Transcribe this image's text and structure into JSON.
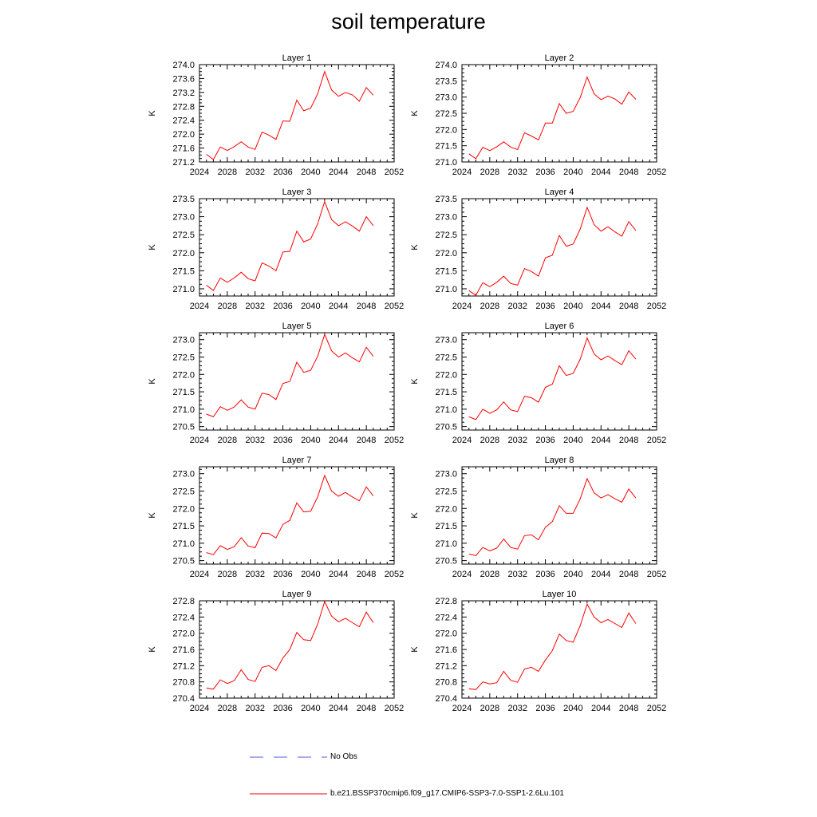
{
  "title": "soil temperature",
  "legend": {
    "entries": [
      {
        "label": "No Obs",
        "color": "#4a5bd6",
        "style": "dashed"
      },
      {
        "label": "b.e21.BSSP370cmip6.f09_g17.CMIP6-SSP3-7.0-SSP1-2.6Lu.101",
        "color": "#ff0000",
        "style": "solid"
      }
    ]
  },
  "chart_data": [
    {
      "type": "line",
      "title": "Layer 1",
      "ylabel": "K",
      "xlim": [
        2024,
        2052
      ],
      "ylim": [
        271.2,
        274.0
      ],
      "xticks": [
        "2024",
        "2028",
        "2032",
        "2036",
        "2040",
        "2044",
        "2048",
        "2052"
      ],
      "yticks": [
        "271.2",
        "271.6",
        "272.0",
        "272.4",
        "272.8",
        "273.2",
        "273.6",
        "274.0"
      ],
      "series": [
        {
          "color": "#ff0000",
          "x": [
            2025,
            2026,
            2027,
            2028,
            2029,
            2030,
            2031,
            2032,
            2033,
            2034,
            2035,
            2036,
            2037,
            2038,
            2039,
            2040,
            2041,
            2042,
            2043,
            2044,
            2045,
            2046,
            2047,
            2048,
            2049
          ],
          "values": [
            271.42,
            271.27,
            271.63,
            271.53,
            271.64,
            271.78,
            271.63,
            271.56,
            272.06,
            271.97,
            271.85,
            272.38,
            272.37,
            272.98,
            272.67,
            272.75,
            273.16,
            273.8,
            273.27,
            273.09,
            273.2,
            273.13,
            272.95,
            273.34,
            273.12
          ]
        }
      ]
    },
    {
      "type": "line",
      "title": "Layer 2",
      "ylabel": "K",
      "xlim": [
        2024,
        2052
      ],
      "ylim": [
        271.0,
        274.0
      ],
      "xticks": [
        "2024",
        "2028",
        "2032",
        "2036",
        "2040",
        "2044",
        "2048",
        "2052"
      ],
      "yticks": [
        "271.0",
        "271.5",
        "272.0",
        "272.5",
        "273.0",
        "273.5",
        "274.0"
      ],
      "series": [
        {
          "color": "#ff0000",
          "x": [
            2025,
            2026,
            2027,
            2028,
            2029,
            2030,
            2031,
            2032,
            2033,
            2034,
            2035,
            2036,
            2037,
            2038,
            2039,
            2040,
            2041,
            2042,
            2043,
            2044,
            2045,
            2046,
            2047,
            2048,
            2049
          ],
          "values": [
            271.25,
            271.1,
            271.45,
            271.35,
            271.47,
            271.62,
            271.46,
            271.38,
            271.9,
            271.8,
            271.68,
            272.2,
            272.2,
            272.8,
            272.5,
            272.56,
            272.98,
            273.62,
            273.1,
            272.92,
            273.03,
            272.94,
            272.78,
            273.16,
            272.93
          ]
        }
      ]
    },
    {
      "type": "line",
      "title": "Layer 3",
      "ylabel": "K",
      "xlim": [
        2024,
        2052
      ],
      "ylim": [
        270.8,
        273.5
      ],
      "xticks": [
        "2024",
        "2028",
        "2032",
        "2036",
        "2040",
        "2044",
        "2048",
        "2052"
      ],
      "yticks": [
        "271.0",
        "271.5",
        "272.0",
        "272.5",
        "273.0",
        "273.5"
      ],
      "series": [
        {
          "color": "#ff0000",
          "x": [
            2025,
            2026,
            2027,
            2028,
            2029,
            2030,
            2031,
            2032,
            2033,
            2034,
            2035,
            2036,
            2037,
            2038,
            2039,
            2040,
            2041,
            2042,
            2043,
            2044,
            2045,
            2046,
            2047,
            2048,
            2049
          ],
          "values": [
            271.1,
            270.95,
            271.3,
            271.18,
            271.3,
            271.46,
            271.28,
            271.22,
            271.72,
            271.63,
            271.5,
            272.02,
            272.04,
            272.6,
            272.3,
            272.38,
            272.8,
            273.42,
            272.92,
            272.75,
            272.86,
            272.74,
            272.6,
            273.0,
            272.75
          ]
        }
      ]
    },
    {
      "type": "line",
      "title": "Layer 4",
      "ylabel": "K",
      "xlim": [
        2024,
        2052
      ],
      "ylim": [
        270.8,
        273.5
      ],
      "xticks": [
        "2024",
        "2028",
        "2032",
        "2036",
        "2040",
        "2044",
        "2048",
        "2052"
      ],
      "yticks": [
        "271.0",
        "271.5",
        "272.0",
        "272.5",
        "273.0",
        "273.5"
      ],
      "series": [
        {
          "color": "#ff0000",
          "x": [
            2025,
            2026,
            2027,
            2028,
            2029,
            2030,
            2031,
            2032,
            2033,
            2034,
            2035,
            2036,
            2037,
            2038,
            2039,
            2040,
            2041,
            2042,
            2043,
            2044,
            2045,
            2046,
            2047,
            2048,
            2049
          ],
          "values": [
            270.95,
            270.82,
            271.17,
            271.06,
            271.18,
            271.35,
            271.15,
            271.1,
            271.56,
            271.48,
            271.35,
            271.86,
            271.93,
            272.48,
            272.18,
            272.24,
            272.65,
            273.26,
            272.78,
            272.6,
            272.72,
            272.58,
            272.46,
            272.86,
            272.62
          ]
        }
      ]
    },
    {
      "type": "line",
      "title": "Layer 5",
      "ylabel": "K",
      "xlim": [
        2024,
        2052
      ],
      "ylim": [
        270.4,
        273.2
      ],
      "xticks": [
        "2024",
        "2028",
        "2032",
        "2036",
        "2040",
        "2044",
        "2048",
        "2052"
      ],
      "yticks": [
        "270.5",
        "271.0",
        "271.5",
        "272.0",
        "272.5",
        "273.0"
      ],
      "series": [
        {
          "color": "#ff0000",
          "x": [
            2025,
            2026,
            2027,
            2028,
            2029,
            2030,
            2031,
            2032,
            2033,
            2034,
            2035,
            2036,
            2037,
            2038,
            2039,
            2040,
            2041,
            2042,
            2043,
            2044,
            2045,
            2046,
            2047,
            2048,
            2049
          ],
          "values": [
            270.86,
            270.78,
            271.07,
            270.97,
            271.06,
            271.27,
            271.06,
            271.0,
            271.46,
            271.42,
            271.28,
            271.74,
            271.8,
            272.35,
            272.06,
            272.12,
            272.52,
            273.15,
            272.68,
            272.5,
            272.62,
            272.48,
            272.36,
            272.78,
            272.52
          ]
        }
      ]
    },
    {
      "type": "line",
      "title": "Layer 6",
      "ylabel": "K",
      "xlim": [
        2024,
        2052
      ],
      "ylim": [
        270.4,
        273.2
      ],
      "xticks": [
        "2024",
        "2028",
        "2032",
        "2036",
        "2040",
        "2044",
        "2048",
        "2052"
      ],
      "yticks": [
        "270.5",
        "271.0",
        "271.5",
        "272.0",
        "272.5",
        "273.0"
      ],
      "series": [
        {
          "color": "#ff0000",
          "x": [
            2025,
            2026,
            2027,
            2028,
            2029,
            2030,
            2031,
            2032,
            2033,
            2034,
            2035,
            2036,
            2037,
            2038,
            2039,
            2040,
            2041,
            2042,
            2043,
            2044,
            2045,
            2046,
            2047,
            2048,
            2049
          ],
          "values": [
            270.78,
            270.7,
            271.0,
            270.88,
            270.98,
            271.21,
            270.98,
            270.93,
            271.37,
            271.33,
            271.2,
            271.63,
            271.72,
            272.25,
            271.97,
            272.03,
            272.43,
            273.05,
            272.59,
            272.42,
            272.53,
            272.4,
            272.28,
            272.68,
            272.44
          ]
        }
      ]
    },
    {
      "type": "line",
      "title": "Layer 7",
      "ylabel": "K",
      "xlim": [
        2024,
        2052
      ],
      "ylim": [
        270.4,
        273.2
      ],
      "xticks": [
        "2024",
        "2028",
        "2032",
        "2036",
        "2040",
        "2044",
        "2048",
        "2052"
      ],
      "yticks": [
        "270.5",
        "271.0",
        "271.5",
        "272.0",
        "272.5",
        "273.0"
      ],
      "series": [
        {
          "color": "#ff0000",
          "x": [
            2025,
            2026,
            2027,
            2028,
            2029,
            2030,
            2031,
            2032,
            2033,
            2034,
            2035,
            2036,
            2037,
            2038,
            2039,
            2040,
            2041,
            2042,
            2043,
            2044,
            2045,
            2046,
            2047,
            2048,
            2049
          ],
          "values": [
            270.73,
            270.67,
            270.93,
            270.82,
            270.9,
            271.16,
            270.92,
            270.87,
            271.29,
            271.28,
            271.15,
            271.54,
            271.66,
            272.16,
            271.9,
            271.92,
            272.33,
            272.95,
            272.5,
            272.35,
            272.46,
            272.33,
            272.22,
            272.62,
            272.36
          ]
        }
      ]
    },
    {
      "type": "line",
      "title": "Layer 8",
      "ylabel": "K",
      "xlim": [
        2024,
        2052
      ],
      "ylim": [
        270.4,
        273.2
      ],
      "xticks": [
        "2024",
        "2028",
        "2032",
        "2036",
        "2040",
        "2044",
        "2048",
        "2052"
      ],
      "yticks": [
        "270.5",
        "271.0",
        "271.5",
        "272.0",
        "272.5",
        "273.0"
      ],
      "series": [
        {
          "color": "#ff0000",
          "x": [
            2025,
            2026,
            2027,
            2028,
            2029,
            2030,
            2031,
            2032,
            2033,
            2034,
            2035,
            2036,
            2037,
            2038,
            2039,
            2040,
            2041,
            2042,
            2043,
            2044,
            2045,
            2046,
            2047,
            2048,
            2049
          ],
          "values": [
            270.69,
            270.64,
            270.88,
            270.78,
            270.86,
            271.12,
            270.88,
            270.83,
            271.22,
            271.24,
            271.1,
            271.46,
            271.62,
            272.08,
            271.86,
            271.86,
            272.27,
            272.86,
            272.45,
            272.3,
            272.4,
            272.28,
            272.18,
            272.56,
            272.3
          ]
        }
      ]
    },
    {
      "type": "line",
      "title": "Layer 9",
      "ylabel": "K",
      "xlim": [
        2024,
        2052
      ],
      "ylim": [
        270.4,
        272.8
      ],
      "xticks": [
        "2024",
        "2028",
        "2032",
        "2036",
        "2040",
        "2044",
        "2048",
        "2052"
      ],
      "yticks": [
        "270.4",
        "270.8",
        "271.2",
        "271.6",
        "272.0",
        "272.4",
        "272.8"
      ],
      "series": [
        {
          "color": "#ff0000",
          "x": [
            2025,
            2026,
            2027,
            2028,
            2029,
            2030,
            2031,
            2032,
            2033,
            2034,
            2035,
            2036,
            2037,
            2038,
            2039,
            2040,
            2041,
            2042,
            2043,
            2044,
            2045,
            2046,
            2047,
            2048,
            2049
          ],
          "values": [
            270.65,
            270.62,
            270.85,
            270.76,
            270.83,
            271.1,
            270.86,
            270.81,
            271.16,
            271.2,
            271.08,
            271.39,
            271.6,
            272.02,
            271.84,
            271.82,
            272.22,
            272.78,
            272.42,
            272.28,
            272.37,
            272.26,
            272.16,
            272.52,
            272.26
          ]
        }
      ]
    },
    {
      "type": "line",
      "title": "Layer 10",
      "ylabel": "K",
      "xlim": [
        2024,
        2052
      ],
      "ylim": [
        270.4,
        272.8
      ],
      "xticks": [
        "2024",
        "2028",
        "2032",
        "2036",
        "2040",
        "2044",
        "2048",
        "2052"
      ],
      "yticks": [
        "270.4",
        "270.8",
        "271.2",
        "271.6",
        "272.0",
        "272.4",
        "272.8"
      ],
      "series": [
        {
          "color": "#ff0000",
          "x": [
            2025,
            2026,
            2027,
            2028,
            2029,
            2030,
            2031,
            2032,
            2033,
            2034,
            2035,
            2036,
            2037,
            2038,
            2039,
            2040,
            2041,
            2042,
            2043,
            2044,
            2045,
            2046,
            2047,
            2048,
            2049
          ],
          "values": [
            270.63,
            270.61,
            270.8,
            270.75,
            270.78,
            271.06,
            270.84,
            270.79,
            271.12,
            271.16,
            271.06,
            271.34,
            271.57,
            271.98,
            271.82,
            271.78,
            272.18,
            272.72,
            272.4,
            272.26,
            272.34,
            272.24,
            272.14,
            272.5,
            272.24
          ]
        }
      ]
    }
  ]
}
